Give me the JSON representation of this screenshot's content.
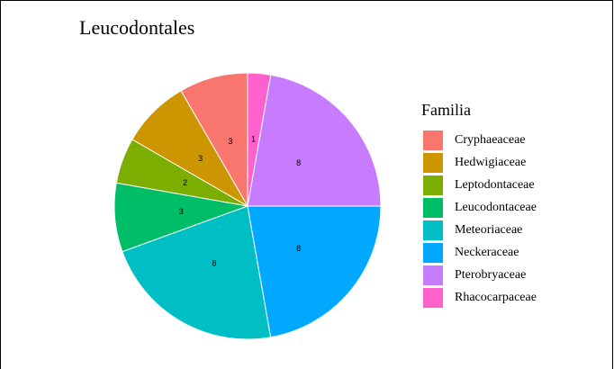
{
  "chart_data": {
    "type": "pie",
    "title": "Leucodontales",
    "legend_title": "Familia",
    "legend": "right",
    "categories": [
      "Cryphaeaceae",
      "Hedwigiaceae",
      "Leptodontaceae",
      "Leucodontaceae",
      "Meteoriaceae",
      "Neckeraceae",
      "Pterobryaceae",
      "Rhacocarpaceae"
    ],
    "values": [
      3,
      3,
      2,
      3,
      8,
      8,
      8,
      1
    ],
    "colors": [
      "#F8766D",
      "#CD9600",
      "#7CAE00",
      "#00BE67",
      "#00BFC4",
      "#00A9FF",
      "#C77CFF",
      "#FF61CC"
    ]
  }
}
